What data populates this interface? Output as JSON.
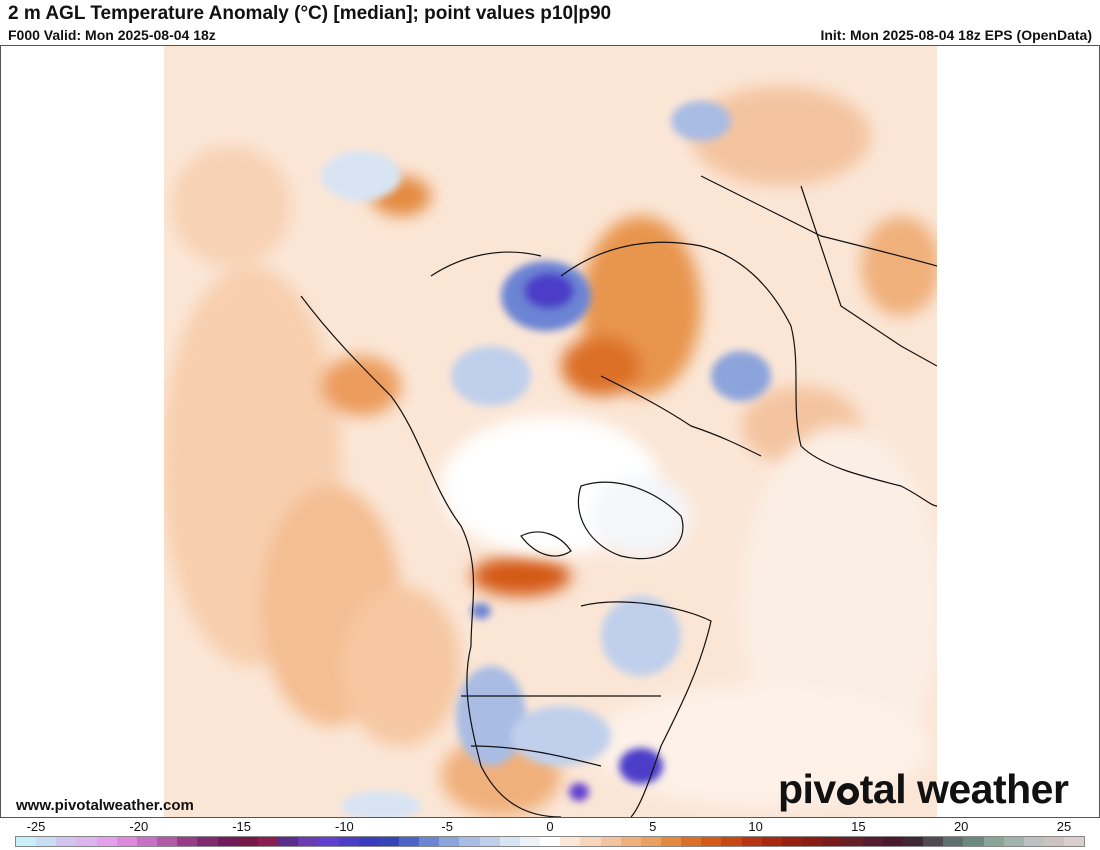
{
  "header": {
    "title": "2 m AGL Temperature Anomaly (°C) [median]; point values p10|p90",
    "valid": "F000 Valid: Mon 2025-08-04 18z",
    "init": "Init: Mon 2025-08-04 18z EPS (OpenData)"
  },
  "footer": {
    "website": "www.pivotalweather.com",
    "logo_left": "piv",
    "logo_right": "tal weather"
  },
  "colorbar": {
    "labels": [
      "-25",
      "-20",
      "-15",
      "-10",
      "-5",
      "0",
      "5",
      "10",
      "15",
      "20",
      "25"
    ],
    "colors": [
      "#c8f0f8",
      "#c8dcf4",
      "#d0c4f0",
      "#dcb4ee",
      "#e4a0ea",
      "#de88e0",
      "#c870c8",
      "#b05aa8",
      "#983c88",
      "#822a70",
      "#6e1c5c",
      "#781848",
      "#8c1c52",
      "#5a2c8c",
      "#6a3cb4",
      "#6040d0",
      "#4c3cc8",
      "#3a3cc0",
      "#3444b8",
      "#4c64c8",
      "#6c84d4",
      "#8ca4dc",
      "#a8bce4",
      "#c0d0ec",
      "#d8e4f4",
      "#eef2f8",
      "#ffffff",
      "#fbe8d8",
      "#f8d6bc",
      "#f4c4a0",
      "#f0b07c",
      "#eca060",
      "#e48a40",
      "#dc7028",
      "#d45a18",
      "#c84814",
      "#b83410",
      "#a82810",
      "#982010",
      "#8a1c14",
      "#7a1c1c",
      "#682028",
      "#561c30",
      "#481a2c",
      "#3e2834",
      "#4e4a50",
      "#5e7070",
      "#6a8a80",
      "#8aa49a",
      "#a4b2ae",
      "#bcc0c0",
      "#cdc4c2",
      "#dccece"
    ]
  }
}
